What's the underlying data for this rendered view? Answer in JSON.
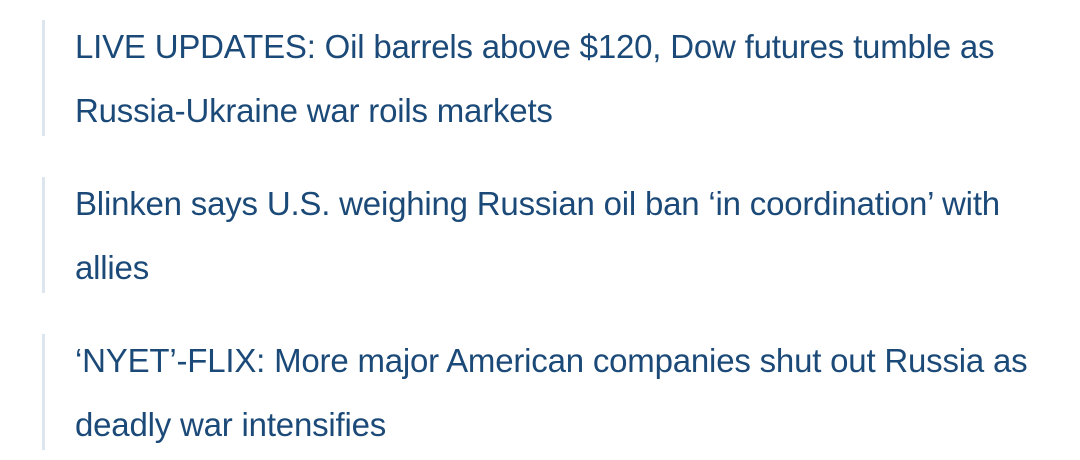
{
  "headlines": [
    {
      "text": "LIVE UPDATES: Oil barrels above $120, Dow futures tumble as Russia-Ukraine war roils markets"
    },
    {
      "text": "Blinken says U.S. weighing Russian oil ban ‘in coordination’ with allies"
    },
    {
      "text": "‘NYET’-FLIX: More major American companies shut out Russia as deadly war intensifies"
    }
  ],
  "colors": {
    "link": "#1c4a78",
    "border": "#dde6ef",
    "background": "#ffffff"
  }
}
